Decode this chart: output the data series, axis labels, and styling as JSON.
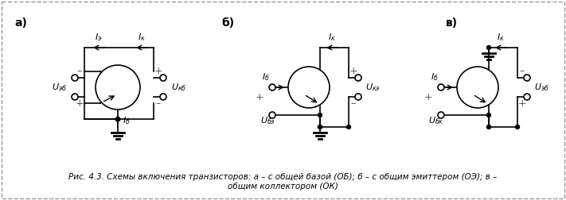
{
  "title_line1": "Рис. 4.3. Схемы включения транзисторов: а – с общей базой (ОБ); б – с общим эмиттером (ОЭ); в –",
  "title_line2": "общим коллектором (ОК)",
  "label_a": "а)",
  "label_b": "б)",
  "label_v": "в)",
  "bg_color": "#ffffff",
  "line_color": "#000000"
}
